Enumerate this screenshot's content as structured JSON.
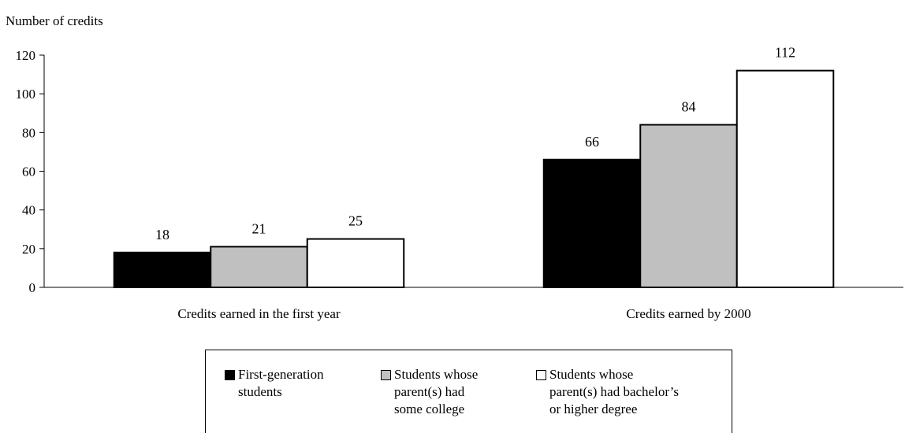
{
  "chart_data": {
    "type": "bar",
    "title": "",
    "ylabel": "Number of credits",
    "xlabel": "",
    "ylim": [
      0,
      120
    ],
    "yticks": [
      0,
      20,
      40,
      60,
      80,
      100,
      120
    ],
    "grid": false,
    "legend_position": "bottom",
    "categories": [
      "Credits earned in the first year",
      "Credits earned by 2000"
    ],
    "series": [
      {
        "name": "First-generation\nstudents",
        "values": [
          18,
          66
        ],
        "color": "#000000"
      },
      {
        "name": "Students whose\nparent(s) had\nsome college",
        "values": [
          21,
          84
        ],
        "color": "#c0c0c0"
      },
      {
        "name": "Students whose\nparent(s) had bachelor’s\nor higher degree",
        "values": [
          25,
          112
        ],
        "color": "#ffffff"
      }
    ],
    "data_labels": [
      [
        "18",
        "66"
      ],
      [
        "21",
        "84"
      ],
      [
        "25",
        "112"
      ]
    ]
  }
}
